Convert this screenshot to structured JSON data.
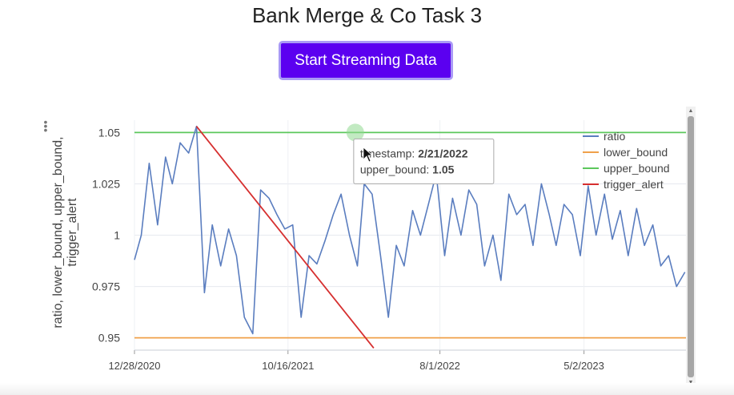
{
  "page": {
    "title": "Bank Merge & Co Task 3",
    "button_label": "Start Streaming Data"
  },
  "chart_data": {
    "type": "line",
    "ylabel": "ratio, lower_bound, upper_bound, trigger_alert",
    "xlabel": "",
    "xticks": [
      "12/28/2020",
      "10/16/2021",
      "8/1/2022",
      "5/2/2023"
    ],
    "yticks": [
      "0.95",
      "0.975",
      "1",
      "1.025",
      "1.05"
    ],
    "ylim": [
      0.944,
      1.056
    ],
    "xlim": [
      "2020-12-28",
      "2023-11-12"
    ],
    "legend_position": "top-right",
    "series": [
      {
        "name": "ratio",
        "color": "#5a7dbf",
        "x": [
          "2020-12-28",
          "2021-01-10",
          "2021-01-25",
          "2021-02-10",
          "2021-02-25",
          "2021-03-10",
          "2021-03-25",
          "2021-04-10",
          "2021-04-25",
          "2021-05-10",
          "2021-05-25",
          "2021-06-10",
          "2021-06-25",
          "2021-07-10",
          "2021-07-25",
          "2021-08-10",
          "2021-08-25",
          "2021-09-10",
          "2021-09-25",
          "2021-10-10",
          "2021-10-25",
          "2021-11-10",
          "2021-11-25",
          "2021-12-10",
          "2021-12-25",
          "2022-01-10",
          "2022-01-25",
          "2022-02-10",
          "2022-02-25",
          "2022-03-10",
          "2022-03-25",
          "2022-04-10",
          "2022-04-25",
          "2022-05-10",
          "2022-05-25",
          "2022-06-10",
          "2022-06-25",
          "2022-07-10",
          "2022-07-25",
          "2022-08-10",
          "2022-08-25",
          "2022-09-10",
          "2022-09-25",
          "2022-10-10",
          "2022-10-25",
          "2022-11-10",
          "2022-11-25",
          "2022-12-10",
          "2022-12-25",
          "2023-01-10",
          "2023-01-25",
          "2023-02-10",
          "2023-02-25",
          "2023-03-10",
          "2023-03-25",
          "2023-04-10",
          "2023-04-25",
          "2023-05-10",
          "2023-05-25",
          "2023-06-10",
          "2023-06-25",
          "2023-07-10",
          "2023-07-25",
          "2023-08-10",
          "2023-08-25",
          "2023-09-10",
          "2023-09-25",
          "2023-10-10",
          "2023-10-25",
          "2023-11-10"
        ],
        "values": [
          0.988,
          1.0,
          1.035,
          1.005,
          1.038,
          1.025,
          1.045,
          1.04,
          1.053,
          0.972,
          1.005,
          0.985,
          1.003,
          0.99,
          0.96,
          0.952,
          1.022,
          1.018,
          1.01,
          1.003,
          1.005,
          0.96,
          0.99,
          0.986,
          0.997,
          1.01,
          1.02,
          1.0,
          0.985,
          1.025,
          1.02,
          0.99,
          0.96,
          0.995,
          0.985,
          1.012,
          1.0,
          1.015,
          1.03,
          0.99,
          1.018,
          1.0,
          1.022,
          1.015,
          0.985,
          1.0,
          0.978,
          1.02,
          1.01,
          1.015,
          0.995,
          1.025,
          1.01,
          0.995,
          1.015,
          1.01,
          0.99,
          1.024,
          1.0,
          1.02,
          0.998,
          1.012,
          0.99,
          1.013,
          0.995,
          1.005,
          0.985,
          0.99,
          0.975,
          0.982
        ]
      },
      {
        "name": "lower_bound",
        "color": "#f0a14a",
        "x": [
          "2020-12-28",
          "2023-11-12"
        ],
        "values": [
          0.95,
          0.95
        ]
      },
      {
        "name": "upper_bound",
        "color": "#5cc75c",
        "x": [
          "2020-12-28",
          "2023-11-12"
        ],
        "values": [
          1.05,
          1.05
        ]
      },
      {
        "name": "trigger_alert",
        "color": "#d62f2f",
        "x": [
          "2021-04-25",
          "2022-03-28"
        ],
        "values": [
          1.053,
          0.945
        ]
      }
    ]
  },
  "tooltip": {
    "key1": "timestamp: ",
    "val1": "2/21/2022",
    "key2": "upper_bound: ",
    "val2": "1.05",
    "x": "2022-02-21",
    "y": 1.05
  }
}
